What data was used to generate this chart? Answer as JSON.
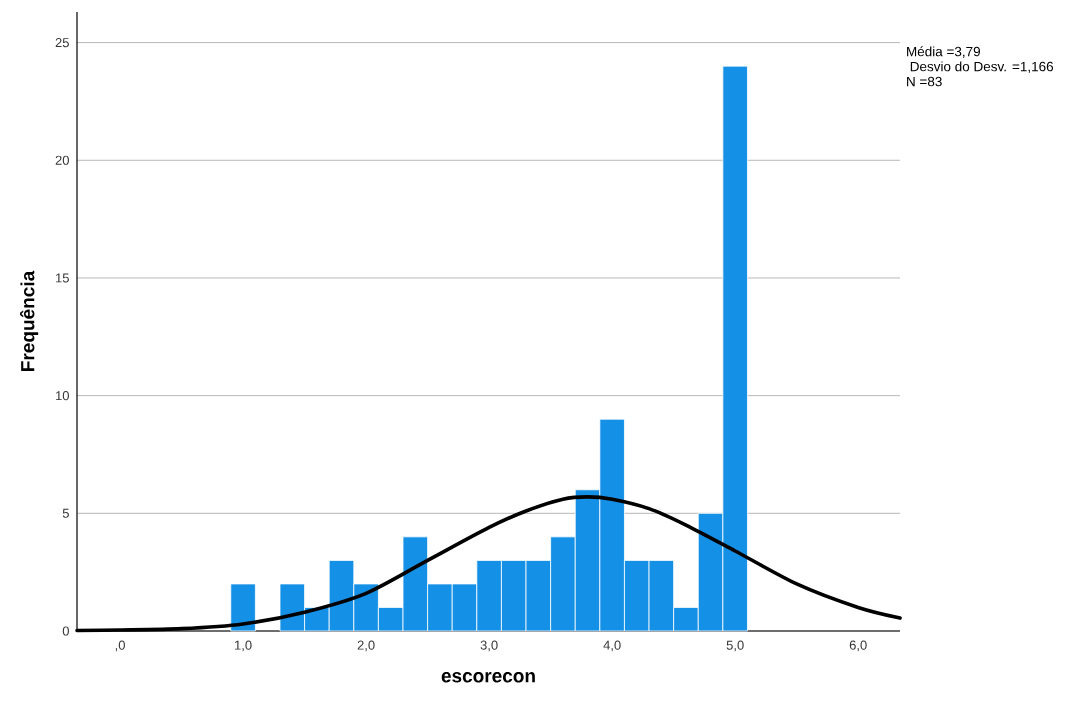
{
  "chart_data": {
    "type": "histogram",
    "xlabel": "escorecon",
    "ylabel": "Frequência",
    "bins": [
      0.9,
      1.1,
      1.3,
      1.5,
      1.7,
      1.9,
      2.1,
      2.3,
      2.5,
      2.7,
      2.9,
      3.1,
      3.3,
      3.5,
      3.7,
      3.9,
      4.1,
      4.3,
      4.5,
      4.7,
      4.9,
      5.1
    ],
    "values": [
      2,
      0,
      2,
      1,
      3,
      2,
      1,
      4,
      2,
      2,
      3,
      3,
      3,
      4,
      6,
      9,
      3,
      3,
      1,
      5,
      24
    ],
    "color": "#1490e6",
    "series": [
      {
        "type": "line",
        "color": "#000000",
        "marker": "none",
        "line_style": "solid",
        "x": [
          -0.35,
          0.0,
          0.5,
          1.0,
          1.5,
          2.0,
          2.5,
          3.0,
          3.3,
          3.6,
          3.8,
          4.0,
          4.3,
          4.6,
          5.0,
          5.5,
          6.0,
          6.34
        ],
        "values": [
          0.02,
          0.04,
          0.1,
          0.3,
          0.8,
          1.6,
          3.0,
          4.4,
          5.1,
          5.6,
          5.7,
          5.6,
          5.2,
          4.5,
          3.4,
          2.0,
          1.0,
          0.55
        ]
      }
    ],
    "xlim": [
      -0.35,
      6.34
    ],
    "ylim": [
      0,
      26.3
    ],
    "xticks": [
      {
        "value": 0,
        "label": ",0"
      },
      {
        "value": 1,
        "label": "1,0"
      },
      {
        "value": 2,
        "label": "2,0"
      },
      {
        "value": 3,
        "label": "3,0"
      },
      {
        "value": 4,
        "label": "4,0"
      },
      {
        "value": 5,
        "label": "5,0"
      },
      {
        "value": 6,
        "label": "6,0"
      }
    ],
    "yticks": [
      0,
      5,
      10,
      15,
      20,
      25
    ],
    "grid": "y",
    "annotations": [
      "Média =3,79",
      " Desvio do Desv. =1,166",
      "N =83"
    ]
  }
}
